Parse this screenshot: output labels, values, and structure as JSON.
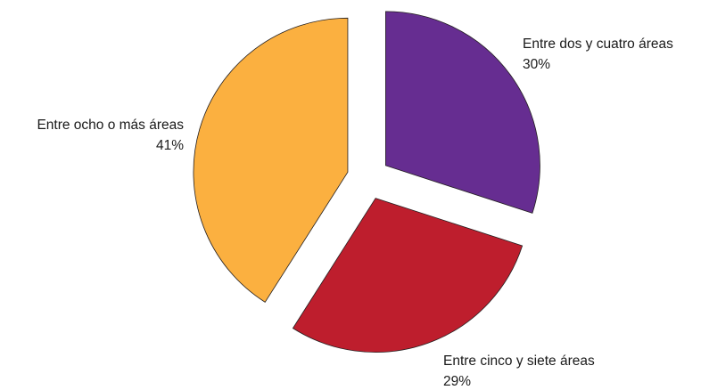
{
  "chart_data": {
    "type": "pie",
    "exploded": true,
    "start_angle": "12 o'clock",
    "direction": "clockwise",
    "slices": [
      {
        "label": "Entre dos y cuatro áreas",
        "value": 30,
        "value_label": "30%",
        "color": "#662d91"
      },
      {
        "label": "Entre cinco y siete áreas",
        "value": 29,
        "value_label": "29%",
        "color": "#be1e2d"
      },
      {
        "label": "Entre ocho o más áreas",
        "value": 41,
        "value_label": "41%",
        "color": "#fbb040"
      }
    ]
  }
}
